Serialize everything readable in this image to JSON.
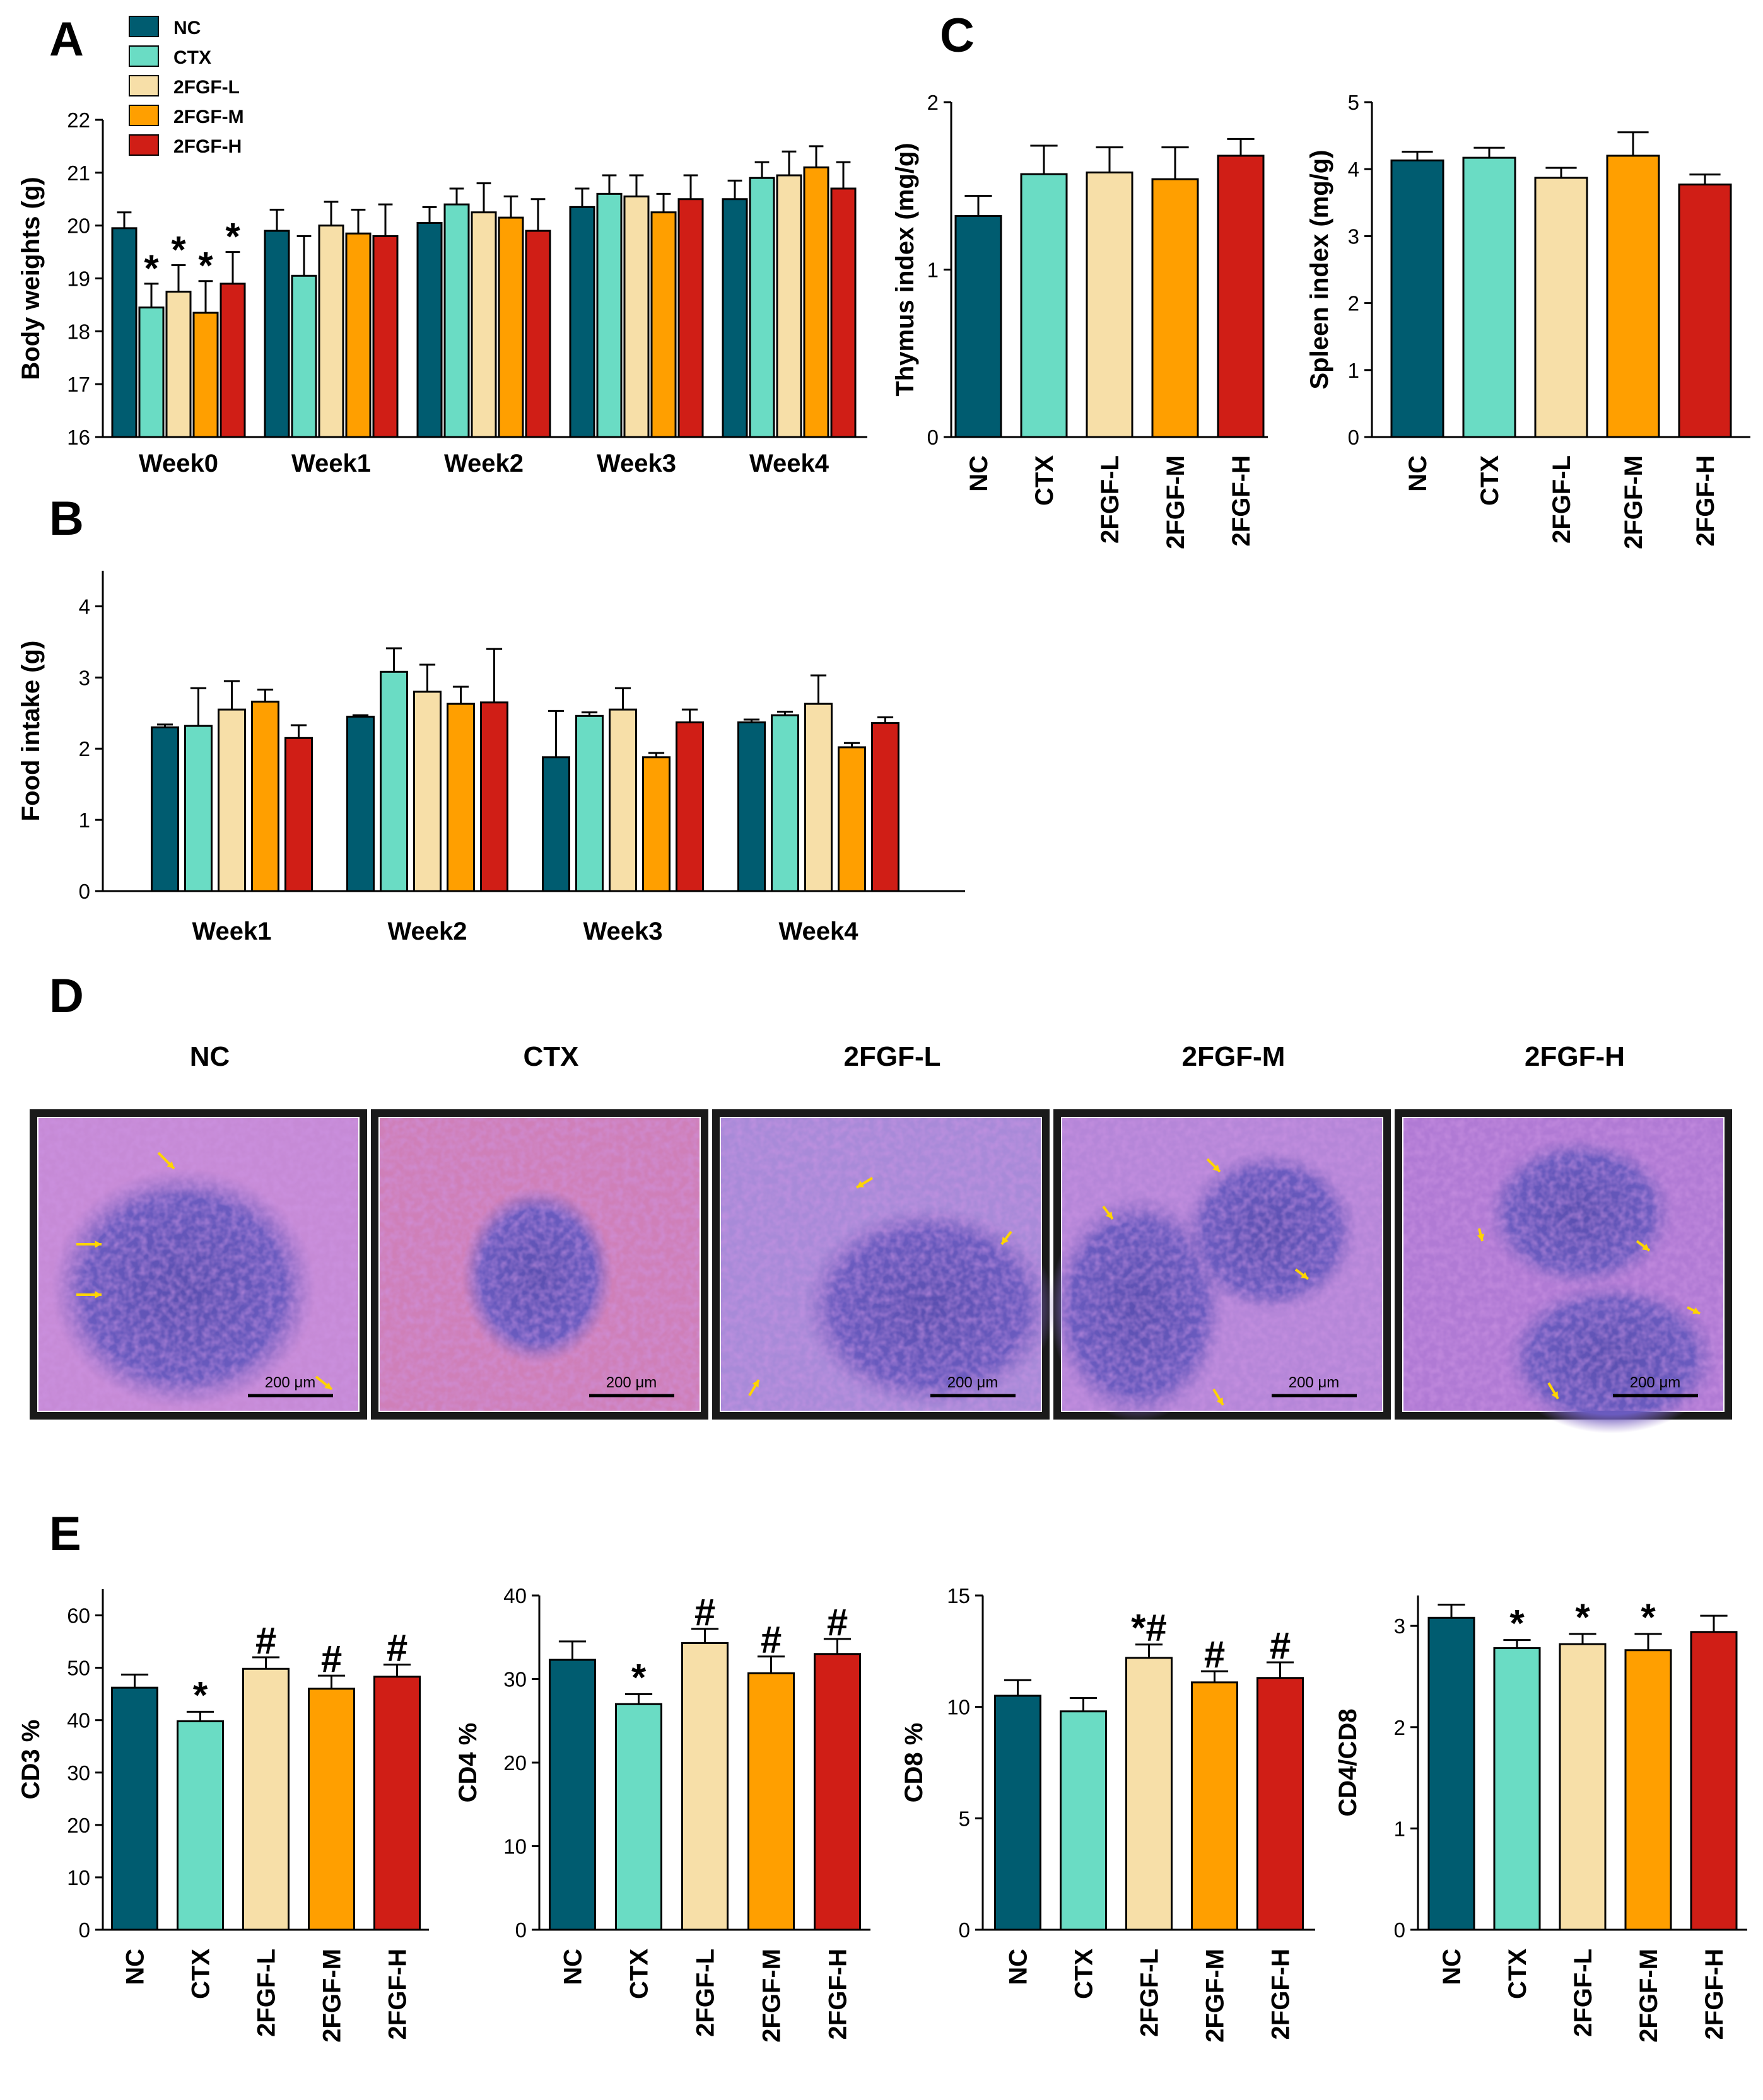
{
  "colors": {
    "NC": "#005c70",
    "CTX": "#6adcc4",
    "2FGF-L": "#f7dfa8",
    "2FGF-M": "#ff9f00",
    "2FGF-H": "#d01e16"
  },
  "panel_labels": {
    "A": "A",
    "B": "B",
    "C": "C",
    "D": "D",
    "E": "E"
  },
  "legend": [
    "NC",
    "CTX",
    "2FGF-L",
    "2FGF-M",
    "2FGF-H"
  ],
  "histology": {
    "titles": [
      "NC",
      "CTX",
      "2FGF-L",
      "2FGF-M",
      "2FGF-H"
    ],
    "scale_label": "200 μm"
  },
  "chart_data": [
    {
      "id": "A",
      "type": "bar",
      "ylabel": "Body weights (g)",
      "ylim": [
        16,
        22
      ],
      "yticks": [
        16,
        17,
        18,
        19,
        20,
        21,
        22
      ],
      "categories": [
        "Week0",
        "Week1",
        "Week2",
        "Week3",
        "Week4"
      ],
      "series": [
        {
          "name": "NC",
          "values": [
            19.95,
            19.9,
            20.05,
            20.35,
            20.5
          ],
          "errors": [
            0.3,
            0.4,
            0.3,
            0.35,
            0.35
          ]
        },
        {
          "name": "CTX",
          "values": [
            18.45,
            19.05,
            20.4,
            20.6,
            20.9
          ],
          "errors": [
            0.45,
            0.75,
            0.3,
            0.35,
            0.3
          ]
        },
        {
          "name": "2FGF-L",
          "values": [
            18.75,
            20.0,
            20.25,
            20.55,
            20.95
          ],
          "errors": [
            0.5,
            0.45,
            0.55,
            0.4,
            0.45
          ]
        },
        {
          "name": "2FGF-M",
          "values": [
            18.35,
            19.85,
            20.15,
            20.25,
            21.1
          ],
          "errors": [
            0.6,
            0.45,
            0.4,
            0.35,
            0.4
          ]
        },
        {
          "name": "2FGF-H",
          "values": [
            18.9,
            19.8,
            19.9,
            20.5,
            20.7
          ],
          "errors": [
            0.6,
            0.6,
            0.6,
            0.45,
            0.5
          ]
        }
      ],
      "annotations": [
        {
          "category": "Week0",
          "series": "CTX",
          "text": "*"
        },
        {
          "category": "Week0",
          "series": "2FGF-L",
          "text": "*"
        },
        {
          "category": "Week0",
          "series": "2FGF-M",
          "text": "*"
        },
        {
          "category": "Week0",
          "series": "2FGF-H",
          "text": "*"
        }
      ]
    },
    {
      "id": "B",
      "type": "bar",
      "ylabel": "Food intake (g)",
      "ylim": [
        0,
        4.5
      ],
      "yticks": [
        0,
        1,
        2,
        3,
        4
      ],
      "categories": [
        "Week1",
        "Week2",
        "Week3",
        "Week4"
      ],
      "series": [
        {
          "name": "NC",
          "values": [
            2.3,
            2.45,
            1.88,
            2.37
          ],
          "errors": [
            0.04,
            0.02,
            0.65,
            0.04
          ]
        },
        {
          "name": "CTX",
          "values": [
            2.32,
            3.08,
            2.46,
            2.47
          ],
          "errors": [
            0.53,
            0.33,
            0.05,
            0.05
          ]
        },
        {
          "name": "2FGF-L",
          "values": [
            2.55,
            2.8,
            2.55,
            2.63
          ],
          "errors": [
            0.4,
            0.38,
            0.3,
            0.4
          ]
        },
        {
          "name": "2FGF-M",
          "values": [
            2.66,
            2.63,
            1.88,
            2.02
          ],
          "errors": [
            0.17,
            0.24,
            0.06,
            0.06
          ]
        },
        {
          "name": "2FGF-H",
          "values": [
            2.15,
            2.65,
            2.37,
            2.36
          ],
          "errors": [
            0.18,
            0.75,
            0.18,
            0.08
          ]
        }
      ],
      "annotations": []
    },
    {
      "id": "C1",
      "type": "bar",
      "ylabel": "Thymus index (mg/g)",
      "ylim": [
        0,
        2
      ],
      "yticks": [
        0,
        1,
        2
      ],
      "categories": [
        "NC",
        "CTX",
        "2FGF-L",
        "2FGF-M",
        "2FGF-H"
      ],
      "values": [
        1.32,
        1.57,
        1.58,
        1.54,
        1.68
      ],
      "errors": [
        0.12,
        0.17,
        0.15,
        0.19,
        0.1
      ],
      "annotations": []
    },
    {
      "id": "C2",
      "type": "bar",
      "ylabel": "Spleen index (mg/g)",
      "ylim": [
        0,
        5
      ],
      "yticks": [
        0,
        1,
        2,
        3,
        4,
        5
      ],
      "categories": [
        "NC",
        "CTX",
        "2FGF-L",
        "2FGF-M",
        "2FGF-H"
      ],
      "values": [
        4.13,
        4.17,
        3.87,
        4.2,
        3.77
      ],
      "errors": [
        0.13,
        0.15,
        0.15,
        0.35,
        0.15
      ],
      "annotations": []
    },
    {
      "id": "E1",
      "type": "bar",
      "ylabel": "CD3 %",
      "ylim": [
        0,
        65
      ],
      "yticks": [
        0,
        10,
        20,
        30,
        40,
        50,
        60
      ],
      "categories": [
        "NC",
        "CTX",
        "2FGF-L",
        "2FGF-M",
        "2FGF-H"
      ],
      "values": [
        46.2,
        39.8,
        49.8,
        46.0,
        48.3
      ],
      "errors": [
        2.5,
        1.8,
        2.2,
        2.5,
        2.3
      ],
      "annotations": [
        "",
        "*",
        "#",
        "#",
        "#"
      ]
    },
    {
      "id": "E2",
      "type": "bar",
      "ylabel": "CD4 %",
      "ylim": [
        0,
        40
      ],
      "yticks": [
        0,
        10,
        20,
        30,
        40
      ],
      "categories": [
        "NC",
        "CTX",
        "2FGF-L",
        "2FGF-M",
        "2FGF-H"
      ],
      "values": [
        32.3,
        27.0,
        34.3,
        30.7,
        33.0
      ],
      "errors": [
        2.2,
        1.2,
        1.7,
        2.0,
        1.8
      ],
      "annotations": [
        "",
        "*",
        "#",
        "#",
        "#"
      ]
    },
    {
      "id": "E3",
      "type": "bar",
      "ylabel": "CD8 %",
      "ylim": [
        0,
        15
      ],
      "yticks": [
        0,
        5,
        10,
        15
      ],
      "categories": [
        "NC",
        "CTX",
        "2FGF-L",
        "2FGF-M",
        "2FGF-H"
      ],
      "values": [
        10.5,
        9.8,
        12.2,
        11.1,
        11.3
      ],
      "errors": [
        0.7,
        0.6,
        0.6,
        0.5,
        0.7
      ],
      "annotations": [
        "",
        "",
        "*#",
        "#",
        "#"
      ]
    },
    {
      "id": "E4",
      "type": "bar",
      "ylabel": "CD4/CD8",
      "ylim": [
        0,
        3.3
      ],
      "yticks": [
        0,
        1,
        2,
        3
      ],
      "categories": [
        "NC",
        "CTX",
        "2FGF-L",
        "2FGF-M",
        "2FGF-H"
      ],
      "values": [
        3.08,
        2.78,
        2.82,
        2.76,
        2.94
      ],
      "errors": [
        0.13,
        0.08,
        0.1,
        0.16,
        0.16
      ],
      "annotations": [
        "",
        "*",
        "*",
        "*",
        ""
      ]
    }
  ]
}
